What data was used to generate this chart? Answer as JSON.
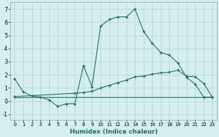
{
  "x": [
    0,
    1,
    2,
    3,
    4,
    5,
    6,
    7,
    8,
    9,
    10,
    11,
    12,
    13,
    14,
    15,
    16,
    17,
    18,
    19,
    20,
    21,
    22,
    23
  ],
  "line1": [
    1.7,
    0.7,
    0.4,
    0.3,
    0.1,
    -0.4,
    -0.2,
    -0.2,
    2.7,
    1.1,
    5.7,
    6.2,
    6.4,
    6.4,
    7.0,
    5.3,
    4.4,
    3.7,
    3.5,
    2.9,
    1.8,
    1.3,
    0.3,
    0.3
  ],
  "line2_x": [
    0,
    7,
    8,
    9,
    10,
    11,
    12,
    13,
    14,
    15,
    16,
    17,
    18,
    19,
    20,
    21,
    22,
    23
  ],
  "line2_y": [
    0.35,
    0.6,
    0.65,
    0.75,
    1.0,
    1.2,
    1.4,
    1.6,
    1.85,
    1.9,
    2.05,
    2.15,
    2.2,
    2.35,
    1.9,
    1.85,
    1.35,
    0.3
  ],
  "line3_x": [
    0,
    1,
    2,
    3,
    4,
    5,
    6,
    7,
    8,
    9,
    10,
    11,
    12,
    13,
    14,
    15,
    16,
    17,
    18,
    19,
    20,
    21,
    22,
    23
  ],
  "line3_y": [
    0.25,
    0.27,
    0.28,
    0.28,
    0.28,
    0.28,
    0.28,
    0.28,
    0.28,
    0.28,
    0.28,
    0.28,
    0.28,
    0.28,
    0.28,
    0.28,
    0.28,
    0.28,
    0.28,
    0.28,
    0.28,
    0.28,
    0.28,
    0.28
  ],
  "color": "#1a6b5e",
  "bg_color": "#d6eeee",
  "grid_color": "#b8d8d8",
  "xlabel": "Humidex (Indice chaleur)",
  "ylim": [
    -1.4,
    7.5
  ],
  "xlim": [
    -0.5,
    23.5
  ],
  "yticks": [
    -1,
    0,
    1,
    2,
    3,
    4,
    5,
    6,
    7
  ],
  "xticks": [
    0,
    1,
    2,
    3,
    4,
    5,
    6,
    7,
    8,
    9,
    10,
    11,
    12,
    13,
    14,
    15,
    16,
    17,
    18,
    19,
    20,
    21,
    22,
    23
  ]
}
